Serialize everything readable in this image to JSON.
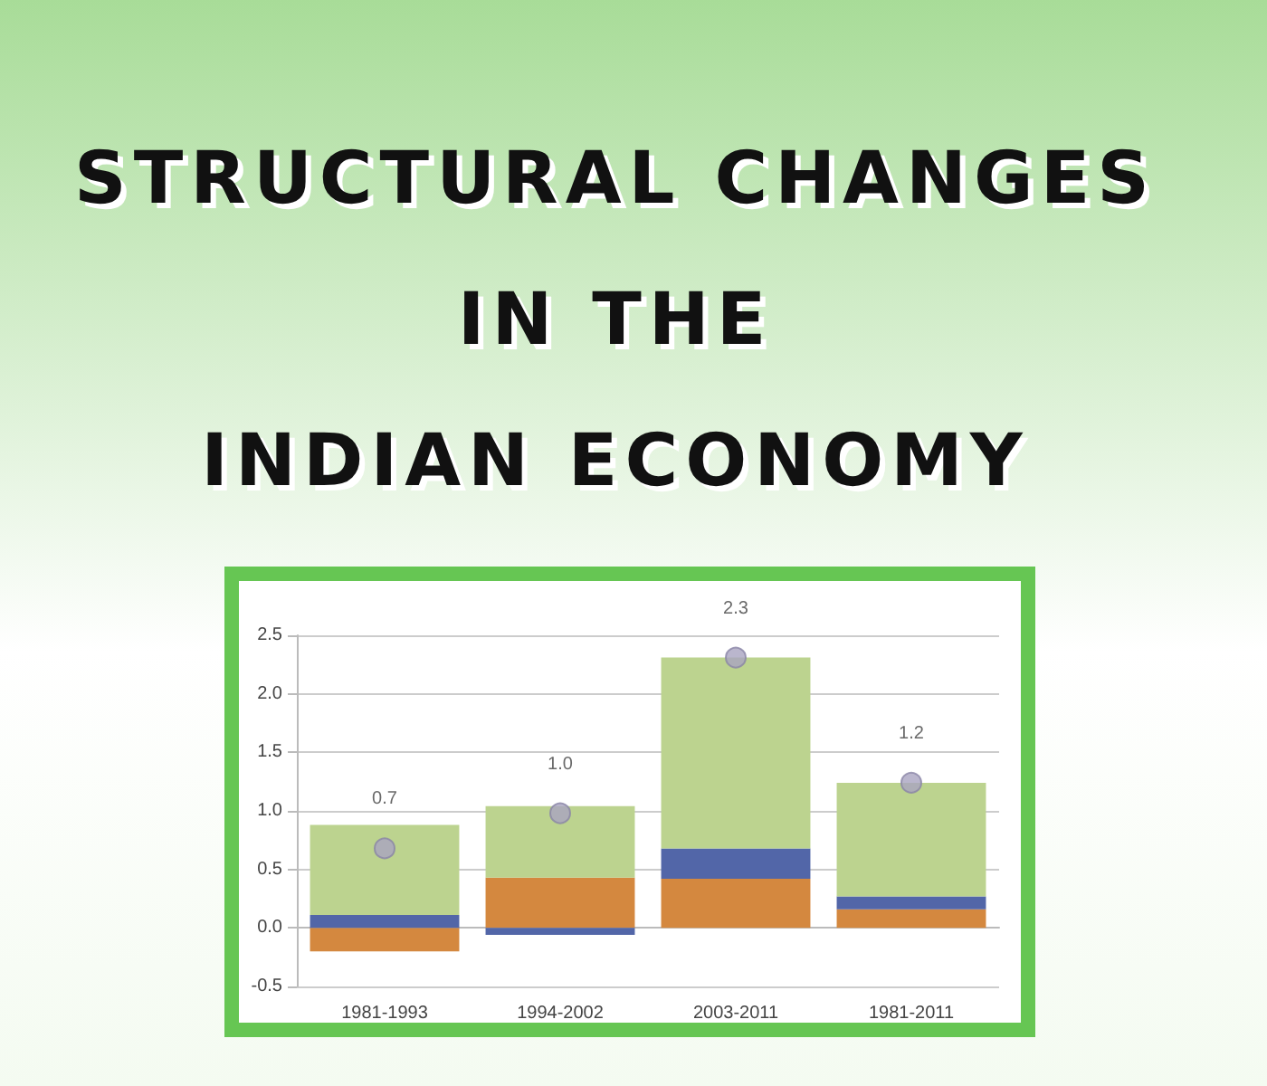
{
  "chart_data": {
    "type": "bar",
    "title": "STRUCTURAL CHANGES\nIN THE\nINDIAN ECONOMY",
    "stacked": true,
    "categories": [
      "1981-1993",
      "1994-2002",
      "2003-2011",
      "1981-2011"
    ],
    "series": [
      {
        "color": "#d4883f",
        "values": [
          -0.2,
          0.43,
          0.42,
          0.16
        ]
      },
      {
        "color": "#5266a8",
        "values": [
          0.11,
          -0.06,
          0.26,
          0.11
        ]
      },
      {
        "color": "#bcd38f",
        "values": [
          0.77,
          0.61,
          1.63,
          0.97
        ]
      },
      {
        "type": "scatter",
        "color": "#a9a4c0",
        "x": [
          "1981-1993",
          "1994-2002",
          "2003-2011",
          "1981-2011"
        ],
        "values": [
          0.68,
          0.98,
          2.31,
          1.24
        ],
        "value_labels": [
          "0.7",
          "1.0",
          "2.3",
          "1.2"
        ]
      }
    ],
    "ylim": [
      -0.5,
      2.5
    ],
    "yticks": [
      -0.5,
      {
        "value": 0,
        "label": "0.0"
      },
      0.5,
      {
        "value": 1,
        "label": "1.0"
      },
      1.5,
      {
        "value": 2,
        "label": "2.0"
      },
      2.5
    ],
    "grid": "y",
    "marker": "circle"
  }
}
